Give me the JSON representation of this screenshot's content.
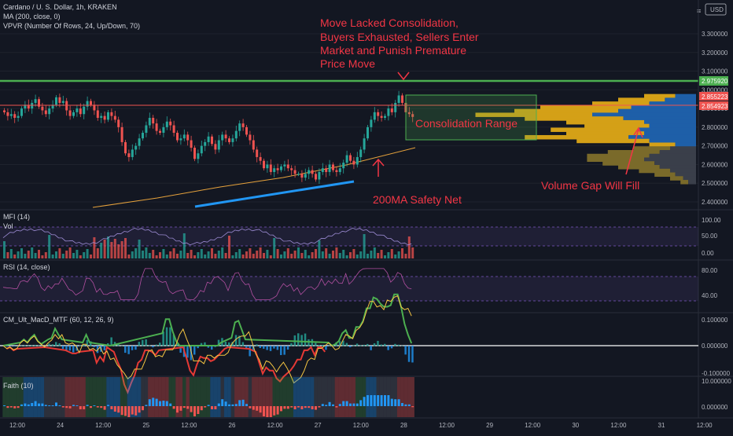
{
  "header": {
    "symbol_line": "Cardano / U. S. Dollar, 1h, KRAKEN",
    "indicators": [
      "MA (200, close, 0)",
      "VPVR (Number Of Rows, 24, Up/Down, 70)"
    ],
    "currency_button": "USD"
  },
  "colors": {
    "background": "#131722",
    "up": "#26a69a",
    "down": "#ef5350",
    "annotation": "#f23645",
    "resistance": "#4caf50",
    "trendline": "#2196f3",
    "ma": "#e6a23c"
  },
  "price_axis": {
    "ticks": [
      "3.300000",
      "3.200000",
      "3.100000",
      "3.000000",
      "2.900000",
      "2.800000",
      "2.700000",
      "2.600000",
      "2.500000",
      "2.400000"
    ],
    "labels": [
      {
        "text": "2.975920",
        "color": "#4caf50"
      },
      {
        "text": "2.855223",
        "color": "#ef5350"
      },
      {
        "text": "2.854923",
        "color": "#ef5350"
      }
    ]
  },
  "time_axis": [
    "12:00",
    "24",
    "12:00",
    "25",
    "12:00",
    "26",
    "12:00",
    "27",
    "12:00",
    "28",
    "12:00",
    "29",
    "12:00",
    "30",
    "12:00",
    "31",
    "12:00"
  ],
  "annotations": {
    "top_text": [
      "Move Lacked Consolidation,",
      "Buyers Exhausted, Sellers Enter",
      "Market and Punish Premature",
      "Price Move"
    ],
    "range_text": "Consolidation Range",
    "ma_text": "200MA Safety Net",
    "gap_text": "Volume Gap Will Fill"
  },
  "panes": {
    "mfi": {
      "title": "MFI (14)",
      "vol_label": "Vol",
      "ticks": [
        "100.00",
        "50.00",
        "0.00"
      ]
    },
    "rsi": {
      "title": "RSI (14, close)",
      "ticks": [
        "80.00",
        "40.00"
      ]
    },
    "macd": {
      "title": "CM_Ult_MacD_MTF (60, 12, 26, 9)",
      "ticks": [
        "0.100000",
        "0.000000",
        "-0.100000"
      ]
    },
    "faith": {
      "title": "Faith (10)",
      "ticks": [
        "10.000000",
        "0.000000"
      ]
    }
  },
  "chart_data": {
    "type": "candlestick",
    "title": "Cardano / U. S. Dollar, 1h, KRAKEN",
    "ylim": [
      2.38,
      3.34
    ],
    "resistance": 2.976,
    "last_price": 2.855,
    "consolidation_range": [
      2.72,
      2.87
    ],
    "ma200": [
      [
        0,
        2.41
      ],
      [
        100,
        2.49
      ],
      [
        200,
        2.55
      ],
      [
        270,
        2.6
      ],
      [
        320,
        2.65
      ]
    ],
    "candles_close": [
      2.88,
      2.86,
      2.87,
      2.85,
      2.86,
      2.9,
      2.92,
      2.9,
      2.93,
      2.95,
      2.91,
      2.89,
      2.87,
      2.9,
      2.92,
      2.96,
      2.93,
      2.94,
      2.89,
      2.86,
      2.88,
      2.9,
      2.87,
      2.91,
      2.94,
      2.92,
      2.89,
      2.85,
      2.86,
      2.84,
      2.88,
      2.86,
      2.84,
      2.8,
      2.72,
      2.66,
      2.64,
      2.68,
      2.7,
      2.74,
      2.77,
      2.81,
      2.85,
      2.82,
      2.78,
      2.77,
      2.8,
      2.83,
      2.81,
      2.77,
      2.73,
      2.74,
      2.76,
      2.73,
      2.69,
      2.63,
      2.66,
      2.7,
      2.72,
      2.75,
      2.71,
      2.68,
      2.73,
      2.76,
      2.74,
      2.72,
      2.74,
      2.78,
      2.82,
      2.8,
      2.76,
      2.73,
      2.68,
      2.64,
      2.62,
      2.58,
      2.6,
      2.56,
      2.58,
      2.57,
      2.59,
      2.6,
      2.58,
      2.57,
      2.55,
      2.55,
      2.53,
      2.55,
      2.57,
      2.55,
      2.52,
      2.56,
      2.58,
      2.56,
      2.6,
      2.57,
      2.56,
      2.58,
      2.61,
      2.65,
      2.62,
      2.6,
      2.64,
      2.68,
      2.74,
      2.8,
      2.84,
      2.88,
      2.86,
      2.85,
      2.86,
      2.9,
      2.88,
      2.93,
      2.97,
      2.93,
      2.88,
      2.87,
      2.855
    ],
    "volume_profile": [
      {
        "price": 2.965,
        "up": 0.12,
        "down": 0.08
      },
      {
        "price": 2.945,
        "up": 0.18,
        "down": 0.12
      },
      {
        "price": 2.925,
        "up": 0.22,
        "down": 0.18
      },
      {
        "price": 2.905,
        "up": 0.35,
        "down": 0.25
      },
      {
        "price": 2.885,
        "up": 0.4,
        "down": 0.3
      },
      {
        "price": 2.865,
        "up": 0.45,
        "down": 0.4
      },
      {
        "price": 2.845,
        "up": 0.38,
        "down": 0.28
      },
      {
        "price": 2.825,
        "up": 0.3,
        "down": 0.2
      },
      {
        "price": 2.805,
        "up": 0.25,
        "down": 0.18
      },
      {
        "price": 2.785,
        "up": 0.34,
        "down": 0.22
      },
      {
        "price": 2.765,
        "up": 0.3,
        "down": 0.2
      },
      {
        "price": 2.745,
        "up": 0.4,
        "down": 0.26
      },
      {
        "price": 2.725,
        "up": 0.28,
        "down": 0.18
      },
      {
        "price": 2.705,
        "up": 0.1,
        "down": 0.08
      },
      {
        "price": 2.685,
        "up": 0.14,
        "down": 0.1
      },
      {
        "price": 2.665,
        "up": 0.2,
        "down": 0.14
      },
      {
        "price": 2.645,
        "up": 0.24,
        "down": 0.18
      },
      {
        "price": 2.625,
        "up": 0.22,
        "down": 0.2
      },
      {
        "price": 2.605,
        "up": 0.2,
        "down": 0.16
      },
      {
        "price": 2.585,
        "up": 0.16,
        "down": 0.14
      },
      {
        "price": 2.565,
        "up": 0.12,
        "down": 0.1
      },
      {
        "price": 2.545,
        "up": 0.08,
        "down": 0.08
      },
      {
        "price": 2.525,
        "up": 0.05,
        "down": 0.05
      },
      {
        "price": 2.505,
        "up": 0.03,
        "down": 0.03
      }
    ]
  }
}
